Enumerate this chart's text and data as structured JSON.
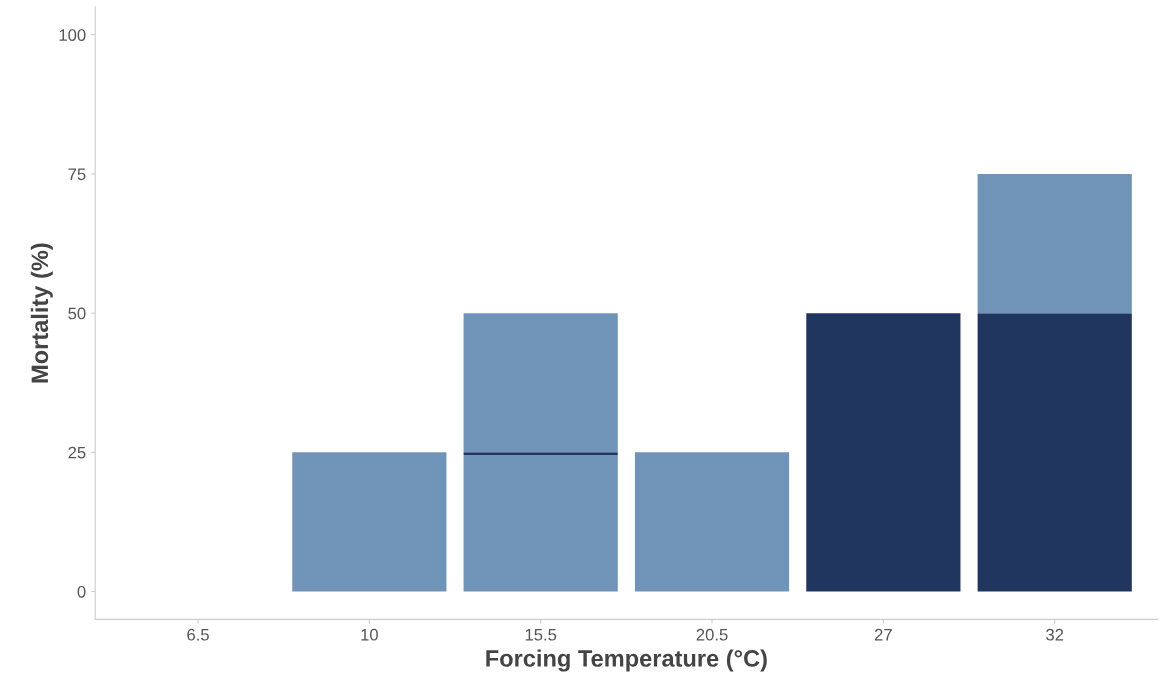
{
  "chart_data": {
    "type": "bar",
    "stacked": true,
    "xlabel": "Forcing Temperature (°C)",
    "ylabel": "Mortality (%)",
    "categories": [
      "6.5",
      "10",
      "15.5",
      "20.5",
      "27",
      "32"
    ],
    "series": [
      {
        "color": "#7094b8",
        "values": [
          0,
          25,
          24.5,
          25,
          0,
          0
        ]
      },
      {
        "color": "#20365f",
        "values": [
          0,
          0,
          0.5,
          0,
          50,
          50
        ]
      },
      {
        "color": "#7094b8",
        "values": [
          0,
          0,
          25,
          0,
          0,
          25
        ]
      }
    ],
    "ylim": [
      -5,
      105
    ],
    "yticks": [
      0,
      25,
      50,
      75,
      100
    ],
    "grid": false,
    "legend": false
  }
}
